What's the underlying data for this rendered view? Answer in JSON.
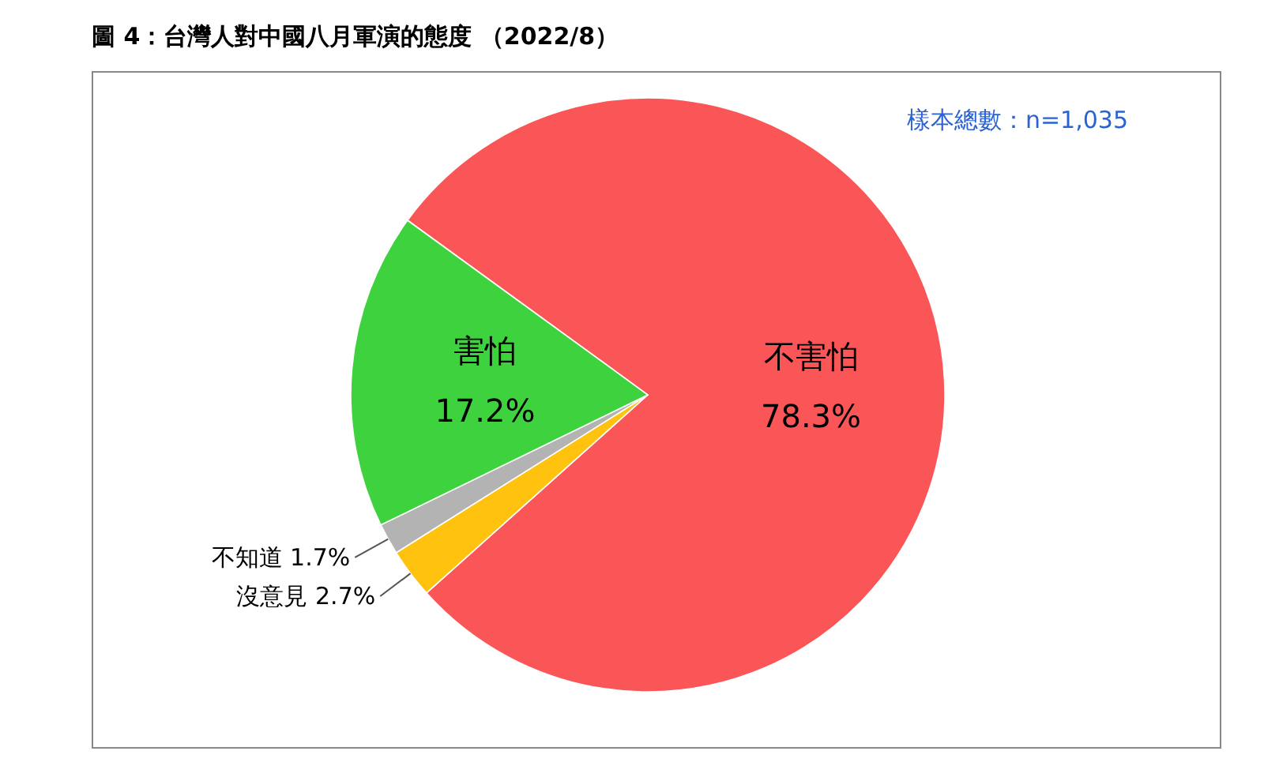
{
  "chart_data": {
    "type": "pie",
    "title": "圖 4：台灣人對中國八月軍演的態度 （2022/8）",
    "categories": [
      "不害怕",
      "沒意見",
      "不知道",
      "害怕"
    ],
    "values": [
      78.3,
      2.7,
      1.7,
      17.2
    ],
    "colors": [
      "#fa5557",
      "#ffc20e",
      "#b3b3b3",
      "#3ed33e"
    ],
    "value_labels": [
      "78.3%",
      "2.7%",
      "1.7%",
      "17.2%"
    ],
    "annotations": [
      "樣本總數：n=1,035"
    ],
    "legend": false
  }
}
